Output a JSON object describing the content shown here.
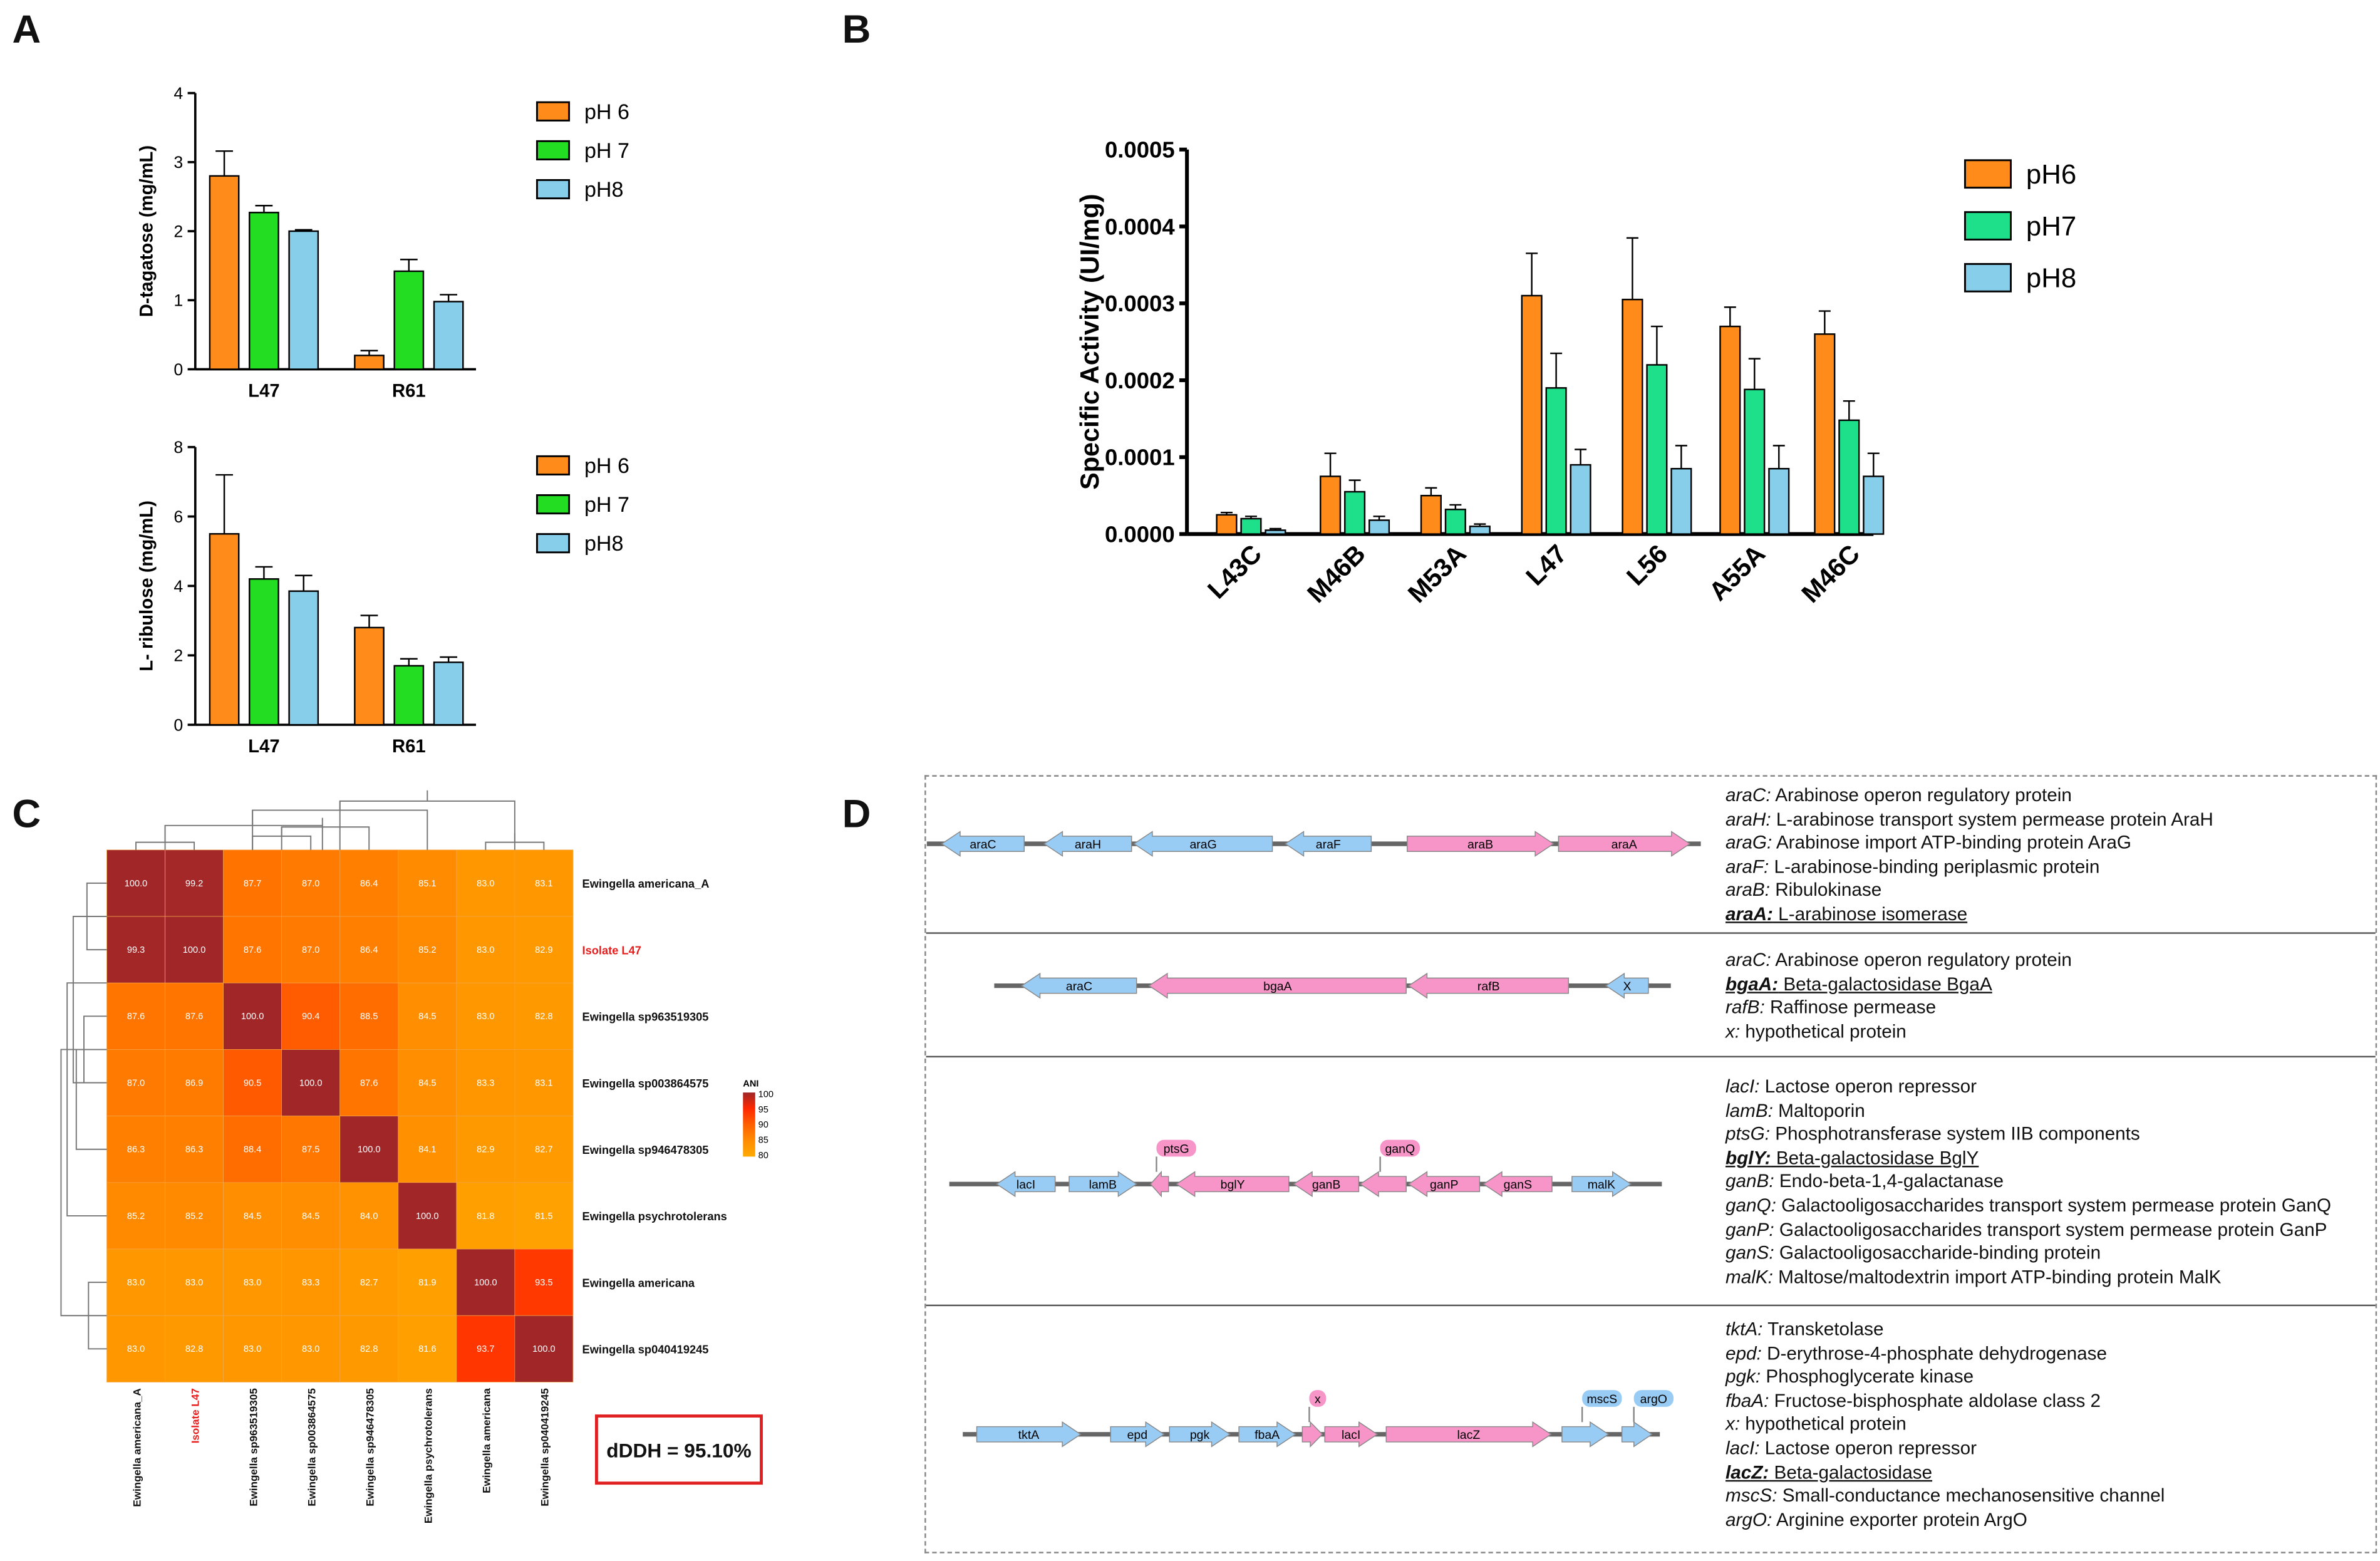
{
  "panels": {
    "a": "A",
    "b": "B",
    "c": "C",
    "d": "D"
  },
  "colors": {
    "ph6": "#FF8C1A",
    "ph7_a": "#22DD22",
    "ph8": "#87CEEB",
    "ph7_b": "#1EE08A",
    "gene_blue": "#99CCF5",
    "gene_pink": "#F794C8"
  },
  "chart_data": [
    {
      "type": "bar",
      "id": "A-top",
      "ylabel": "D-tagatose (mg/mL)",
      "ylim": [
        0,
        4
      ],
      "yticks": [
        "0",
        "1",
        "2",
        "3",
        "4"
      ],
      "categories": [
        "L47",
        "R61"
      ],
      "legend": [
        "pH 6",
        "pH 7",
        "pH8"
      ],
      "series": [
        {
          "name": "pH 6",
          "values": [
            2.8,
            0.2
          ],
          "errors": [
            0.36,
            0.07
          ]
        },
        {
          "name": "pH 7",
          "values": [
            2.27,
            1.42
          ],
          "errors": [
            0.1,
            0.17
          ]
        },
        {
          "name": "pH8",
          "values": [
            2.0,
            0.98
          ],
          "errors": [
            0.02,
            0.1
          ]
        }
      ]
    },
    {
      "type": "bar",
      "id": "A-bottom",
      "ylabel": "L- ribulose (mg/mL)",
      "ylim": [
        0,
        8
      ],
      "yticks": [
        "0",
        "2",
        "4",
        "6",
        "8"
      ],
      "categories": [
        "L47",
        "R61"
      ],
      "legend": [
        "pH 6",
        "pH 7",
        "pH8"
      ],
      "series": [
        {
          "name": "pH 6",
          "values": [
            5.5,
            2.8
          ],
          "errors": [
            1.7,
            0.35
          ]
        },
        {
          "name": "pH 7",
          "values": [
            4.2,
            1.7
          ],
          "errors": [
            0.35,
            0.2
          ]
        },
        {
          "name": "pH8",
          "values": [
            3.85,
            1.8
          ],
          "errors": [
            0.45,
            0.15
          ]
        }
      ]
    },
    {
      "type": "bar",
      "id": "B",
      "ylabel": "Specific Activity (UI/mg)",
      "ylim": [
        0,
        0.0005
      ],
      "yticks": [
        "0.0000",
        "0.0001",
        "0.0002",
        "0.0003",
        "0.0004",
        "0.0005"
      ],
      "categories": [
        "L43C",
        "M46B",
        "M53A",
        "L47",
        "L56",
        "A55A",
        "M46C"
      ],
      "legend": [
        "pH6",
        "pH7",
        "pH8"
      ],
      "series": [
        {
          "name": "pH6",
          "values": [
            2.5e-05,
            7.5e-05,
            5e-05,
            0.00031,
            0.000305,
            0.00027,
            0.00026
          ],
          "errors": [
            3e-06,
            3e-05,
            1e-05,
            5.5e-05,
            8e-05,
            2.5e-05,
            3e-05
          ]
        },
        {
          "name": "pH7",
          "values": [
            2e-05,
            5.5e-05,
            3.2e-05,
            0.00019,
            0.00022,
            0.000188,
            0.000148
          ],
          "errors": [
            3e-06,
            1.5e-05,
            6e-06,
            4.5e-05,
            5e-05,
            4e-05,
            2.5e-05
          ]
        },
        {
          "name": "pH8",
          "values": [
            5e-06,
            1.8e-05,
            1e-05,
            9e-05,
            8.5e-05,
            8.5e-05,
            7.5e-05
          ],
          "errors": [
            2e-06,
            5e-06,
            3e-06,
            2e-05,
            3e-05,
            3e-05,
            3e-05
          ]
        }
      ]
    },
    {
      "type": "heatmap",
      "id": "C",
      "legend_title": "ANI",
      "legend_ticks": [
        "100",
        "95",
        "90",
        "85",
        "80"
      ],
      "labels": [
        "Ewingella americana_A",
        "Isolate L47",
        "Ewingella sp963519305",
        "Ewingella sp003864575",
        "Ewingella sp946478305",
        "Ewingella psychrotolerans",
        "Ewingella americana",
        "Ewingella sp040419245"
      ],
      "highlight": "Isolate L47",
      "values": [
        [
          100.0,
          99.2,
          87.7,
          87.0,
          86.4,
          85.1,
          83.0,
          83.1
        ],
        [
          99.3,
          100.0,
          87.6,
          87.0,
          86.4,
          85.2,
          83.0,
          82.9
        ],
        [
          87.6,
          87.6,
          100.0,
          90.4,
          88.5,
          84.5,
          83.0,
          82.8
        ],
        [
          87.0,
          86.9,
          90.5,
          100.0,
          87.6,
          84.5,
          83.3,
          83.1
        ],
        [
          86.3,
          86.3,
          88.4,
          87.5,
          100.0,
          84.1,
          82.9,
          82.7
        ],
        [
          85.2,
          85.2,
          84.5,
          84.5,
          84.0,
          100.0,
          81.8,
          81.5
        ],
        [
          83.0,
          83.0,
          83.0,
          83.3,
          82.7,
          81.9,
          100.0,
          93.5
        ],
        [
          83.0,
          82.8,
          83.0,
          83.0,
          82.8,
          81.6,
          93.7,
          100.0
        ]
      ]
    }
  ],
  "ddh": "dDDH = 95.10%",
  "operons": [
    {
      "genes": [
        {
          "n": "araC",
          "s": "-",
          "c": "b"
        },
        {
          "n": "araH",
          "s": "-",
          "c": "b"
        },
        {
          "n": "araG",
          "s": "-",
          "c": "b"
        },
        {
          "n": "araF",
          "s": "-",
          "c": "b"
        },
        {
          "n": "araB",
          "s": "+",
          "c": "p"
        },
        {
          "n": "araA",
          "s": "+",
          "c": "p"
        }
      ],
      "desc": [
        {
          "g": "araC:",
          "t": " Arabinose operon regulatory protein"
        },
        {
          "g": "araH:",
          "t": " L-arabinose transport system permease protein AraH"
        },
        {
          "g": "araG:",
          "t": " Arabinose import ATP-binding protein AraG"
        },
        {
          "g": "araF:",
          "t": " L-arabinose-binding periplasmic protein"
        },
        {
          "g": "araB:",
          "t": " Ribulokinase"
        },
        {
          "g": "araA:",
          "t": " L-arabinose isomerase",
          "key": true
        }
      ]
    },
    {
      "genes": [
        {
          "n": "araC",
          "s": "-",
          "c": "b"
        },
        {
          "n": "bgaA",
          "s": "-",
          "c": "p"
        },
        {
          "n": "rafB",
          "s": "-",
          "c": "p"
        },
        {
          "n": "X",
          "s": "-",
          "c": "b"
        }
      ],
      "desc": [
        {
          "g": "araC:",
          "t": " Arabinose operon regulatory protein"
        },
        {
          "g": "bgaA:",
          "t": " Beta-galactosidase BgaA",
          "key": true
        },
        {
          "g": "rafB:",
          "t": " Raffinose permease"
        },
        {
          "g": "x:",
          "t": " hypothetical protein"
        }
      ]
    },
    {
      "genes": [
        {
          "n": "lacI",
          "s": "-",
          "c": "b"
        },
        {
          "n": "lamB",
          "s": "+",
          "c": "b"
        },
        {
          "n": "ptsG",
          "s": "-",
          "c": "p",
          "above": true
        },
        {
          "n": "bglY",
          "s": "-",
          "c": "p"
        },
        {
          "n": "ganB",
          "s": "-",
          "c": "p"
        },
        {
          "n": "ganQ",
          "s": "-",
          "c": "p",
          "above": true
        },
        {
          "n": "ganP",
          "s": "-",
          "c": "p"
        },
        {
          "n": "ganS",
          "s": "-",
          "c": "p"
        },
        {
          "n": "malK",
          "s": "+",
          "c": "b"
        }
      ],
      "desc": [
        {
          "g": "lacI:",
          "t": " Lactose operon repressor"
        },
        {
          "g": "lamB:",
          "t": " Maltoporin"
        },
        {
          "g": "ptsG:",
          "t": " Phosphotransferase system IIB components"
        },
        {
          "g": "bglY:",
          "t": " Beta-galactosidase BglY",
          "key": true
        },
        {
          "g": "ganB:",
          "t": " Endo-beta-1,4-galactanase"
        },
        {
          "g": "ganQ:",
          "t": " Galactooligosaccharides transport system permease protein GanQ"
        },
        {
          "g": "ganP:",
          "t": " Galactooligosaccharides transport system permease protein GanP"
        },
        {
          "g": "ganS:",
          "t": " Galactooligosaccharide-binding protein"
        },
        {
          "g": "malK:",
          "t": " Maltose/maltodextrin import ATP-binding protein MalK"
        }
      ]
    },
    {
      "genes": [
        {
          "n": "tktA",
          "s": "+",
          "c": "b"
        },
        {
          "n": "epd",
          "s": "+",
          "c": "b"
        },
        {
          "n": "pgk",
          "s": "+",
          "c": "b"
        },
        {
          "n": "fbaA",
          "s": "+",
          "c": "b"
        },
        {
          "n": "x",
          "s": "+",
          "c": "p",
          "above": true
        },
        {
          "n": "lacI",
          "s": "+",
          "c": "p"
        },
        {
          "n": "lacZ",
          "s": "+",
          "c": "p"
        },
        {
          "n": "mscS",
          "s": "+",
          "c": "b",
          "above": true
        },
        {
          "n": "argO",
          "s": "+",
          "c": "b",
          "above": true
        }
      ],
      "desc": [
        {
          "g": "tktA:",
          "t": " Transketolase"
        },
        {
          "g": "epd:",
          "t": " D-erythrose-4-phosphate dehydrogenase"
        },
        {
          "g": "pgk:",
          "t": " Phosphoglycerate kinase"
        },
        {
          "g": "fbaA:",
          "t": " Fructose-bisphosphate aldolase class 2"
        },
        {
          "g": "x:",
          "t": " hypothetical protein"
        },
        {
          "g": "lacI:",
          "t": " Lactose operon repressor"
        },
        {
          "g": "lacZ:",
          "t": " Beta-galactosidase",
          "key": true
        },
        {
          "g": "mscS:",
          "t": " Small-conductance mechanosensitive channel"
        },
        {
          "g": "argO:",
          "t": " Arginine exporter protein ArgO"
        }
      ]
    }
  ]
}
